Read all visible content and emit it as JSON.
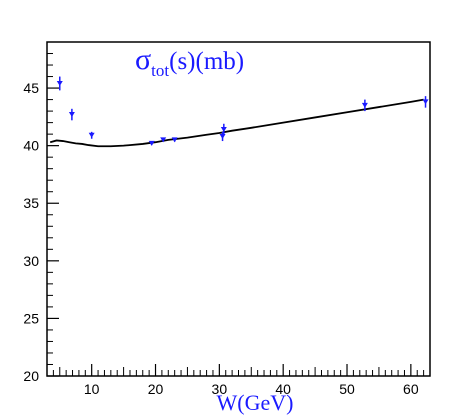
{
  "chart_data": {
    "type": "scatter",
    "annotation": {
      "symbol": "σ",
      "subscript": "tot",
      "rest": "(s)(mb)"
    },
    "xlabel": "W(GeV)",
    "ylabel": "",
    "xlim": [
      3,
      63
    ],
    "ylim": [
      20,
      49
    ],
    "x_ticks": [
      "10",
      "20",
      "30",
      "40",
      "50",
      "60"
    ],
    "y_ticks": [
      "20",
      "25",
      "30",
      "35",
      "40",
      "45"
    ],
    "grid": false,
    "colors": {
      "points": "#1a1aff",
      "curve": "#000000",
      "annotation": "#1a1aff"
    },
    "series": [
      {
        "type": "scatter",
        "points": [
          {
            "x": 5.0,
            "y": 45.4,
            "err": 0.6
          },
          {
            "x": 6.9,
            "y": 42.7,
            "err": 0.5
          },
          {
            "x": 10.0,
            "y": 40.9,
            "err": 0.3
          },
          {
            "x": 19.4,
            "y": 40.2,
            "err": 0.15
          },
          {
            "x": 21.2,
            "y": 40.5,
            "err": 0.15
          },
          {
            "x": 23.0,
            "y": 40.5,
            "err": 0.15
          },
          {
            "x": 30.5,
            "y": 40.8,
            "err": 0.4
          },
          {
            "x": 30.7,
            "y": 41.4,
            "err": 0.5
          },
          {
            "x": 52.8,
            "y": 43.5,
            "err": 0.5
          },
          {
            "x": 62.3,
            "y": 43.8,
            "err": 0.5
          }
        ]
      },
      {
        "type": "line",
        "x": [
          3.5,
          4.5,
          5.5,
          6.5,
          7.5,
          8.5,
          9.5,
          11,
          13,
          15,
          18,
          20,
          22,
          25,
          28,
          30,
          32,
          35,
          40,
          45,
          50,
          55,
          60,
          62
        ],
        "y": [
          40.3,
          40.45,
          40.4,
          40.3,
          40.2,
          40.15,
          40.05,
          39.95,
          39.95,
          40.0,
          40.15,
          40.3,
          40.5,
          40.7,
          40.95,
          41.1,
          41.3,
          41.55,
          42.0,
          42.45,
          42.9,
          43.35,
          43.8,
          44.0
        ]
      }
    ]
  }
}
